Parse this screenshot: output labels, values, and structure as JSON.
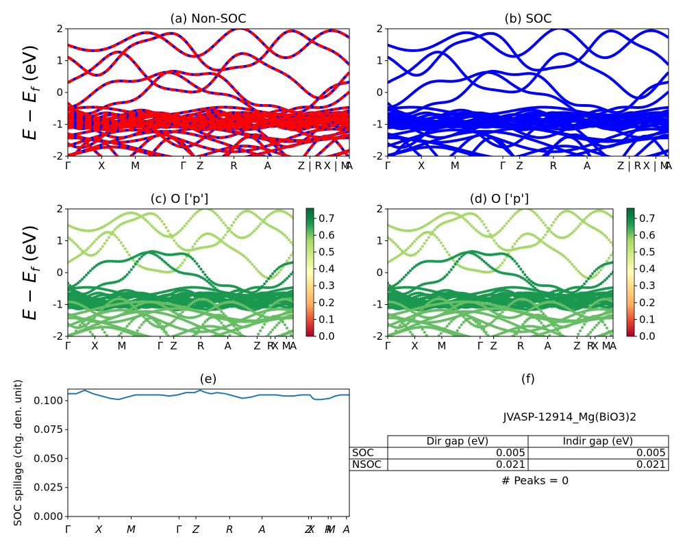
{
  "figure": {
    "ylabel_band": "E − E_f (eV)",
    "ylabel_band_main": "E − E",
    "ylabel_band_sub": "f",
    "ylabel_band_unit": " (eV)"
  },
  "chart_data": [
    {
      "id": "a",
      "type": "line",
      "title": "(a) Non-SOC",
      "ylim": [
        -2,
        2
      ],
      "yticks": [
        -2,
        -1,
        0,
        1,
        2
      ],
      "xticks": [
        "Γ",
        "X",
        "M",
        "Γ",
        "Z",
        "R",
        "A",
        "Z | R",
        "X | M",
        "A"
      ],
      "series": [
        {
          "role": "spin-up",
          "color": "#0000ff"
        },
        {
          "role": "spin-down",
          "color": "#ff0000",
          "style": "dashed"
        }
      ]
    },
    {
      "id": "b",
      "type": "line",
      "title": "(b) SOC",
      "ylim": [
        -2,
        2
      ],
      "yticks": [
        -2,
        -1,
        0,
        1,
        2
      ],
      "xticks": [
        "Γ",
        "X",
        "M",
        "Γ",
        "Z",
        "R",
        "A",
        "Z | R",
        "X | M",
        "A"
      ],
      "series": [
        {
          "role": "bands",
          "color": "#0000ff"
        }
      ]
    },
    {
      "id": "c",
      "type": "scatter",
      "title": "(c)  O ['p']",
      "ylim": [
        -2,
        2
      ],
      "yticks": [
        -2,
        -1,
        0,
        1,
        2
      ],
      "xticks": [
        "Γ",
        "X",
        "M",
        "Γ",
        "Z",
        "R",
        "A",
        "Z",
        "R",
        "X",
        "M",
        "A"
      ],
      "colorbar": {
        "ticks": [
          "0.0",
          "0.1",
          "0.2",
          "0.3",
          "0.4",
          "0.5",
          "0.6",
          "0.7"
        ],
        "min": 0.0,
        "max": 0.76,
        "colormap": "RdYlGn"
      }
    },
    {
      "id": "d",
      "type": "scatter",
      "title": "(d) O ['p']",
      "ylim": [
        -2,
        2
      ],
      "yticks": [
        -2,
        -1,
        0,
        1,
        2
      ],
      "xticks": [
        "Γ",
        "X",
        "M",
        "Γ",
        "Z",
        "R",
        "A",
        "Z",
        "R",
        "X",
        "M",
        "A"
      ],
      "colorbar": {
        "ticks": [
          "0.0",
          "0.1",
          "0.2",
          "0.3",
          "0.4",
          "0.5",
          "0.6",
          "0.7"
        ],
        "min": 0.0,
        "max": 0.76,
        "colormap": "RdYlGn"
      }
    },
    {
      "id": "e",
      "type": "line",
      "title": "(e)",
      "ylabel": "SOC spillage (chg. den. unit)",
      "ylim": [
        0.0,
        0.11
      ],
      "yticks": [
        "0.000",
        "0.025",
        "0.050",
        "0.075",
        "0.100"
      ],
      "xticks": [
        "Γ",
        "X",
        "M",
        "Γ",
        "Z",
        "R",
        "A",
        "Z",
        "X",
        "R",
        "M",
        "A"
      ],
      "series": [
        {
          "role": "spillage",
          "color": "#1f77b4",
          "x": [
            0,
            0.03,
            0.06,
            0.09,
            0.12,
            0.15,
            0.18,
            0.21,
            0.24,
            0.27,
            0.3,
            0.33,
            0.36,
            0.39,
            0.42,
            0.45,
            0.47,
            0.49,
            0.51,
            0.53,
            0.56,
            0.59,
            0.62,
            0.65,
            0.68,
            0.71,
            0.74,
            0.77,
            0.8,
            0.83,
            0.86,
            0.87,
            0.88,
            0.9,
            0.93,
            0.95,
            0.97,
            1.0
          ],
          "values": [
            0.106,
            0.106,
            0.109,
            0.106,
            0.104,
            0.102,
            0.101,
            0.103,
            0.105,
            0.105,
            0.105,
            0.105,
            0.104,
            0.105,
            0.107,
            0.107,
            0.109,
            0.107,
            0.106,
            0.107,
            0.106,
            0.104,
            0.102,
            0.103,
            0.105,
            0.105,
            0.105,
            0.104,
            0.104,
            0.105,
            0.105,
            0.102,
            0.101,
            0.101,
            0.102,
            0.104,
            0.105,
            0.105
          ]
        }
      ]
    },
    {
      "id": "f",
      "type": "table",
      "title": "(f)",
      "caption": "JVASP-12914_Mg(BiO3)2",
      "columns": [
        "Dir gap (eV)",
        "Indir gap (eV)"
      ],
      "rows": [
        {
          "label": "SOC",
          "values": [
            "0.005",
            "0.005"
          ]
        },
        {
          "label": "NSOC",
          "values": [
            "0.021",
            "0.021"
          ]
        }
      ],
      "footer": "# Peaks = 0"
    }
  ]
}
